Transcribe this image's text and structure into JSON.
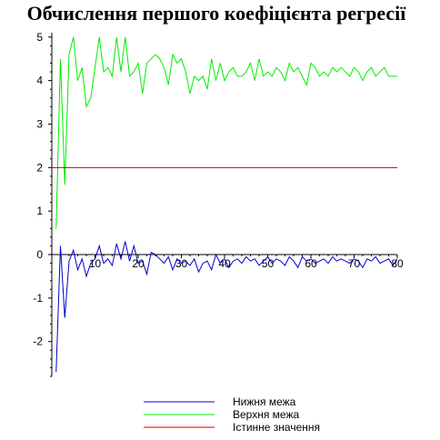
{
  "chart_data": {
    "type": "line",
    "title": "Обчислення першого коефіцієнта регресії",
    "xlabel": "",
    "ylabel": "",
    "xlim": [
      0,
      80
    ],
    "ylim": [
      -2.8,
      5.1
    ],
    "x_ticks": [
      0,
      10,
      20,
      30,
      40,
      50,
      60,
      70,
      80
    ],
    "y_ticks": [
      -2,
      -1,
      0,
      1,
      2,
      3,
      4,
      5
    ],
    "grid": false,
    "legend_position": "bottom-center",
    "series": [
      {
        "name": "Нижня межа",
        "color": "#0000cc",
        "x": [
          1,
          2,
          3,
          4,
          5,
          6,
          7,
          8,
          9,
          10,
          11,
          12,
          13,
          14,
          15,
          16,
          17,
          18,
          19,
          20,
          21,
          22,
          23,
          24,
          25,
          26,
          27,
          28,
          29,
          30,
          31,
          32,
          33,
          34,
          35,
          36,
          37,
          38,
          39,
          40,
          41,
          42,
          43,
          44,
          45,
          46,
          47,
          48,
          49,
          50,
          51,
          52,
          53,
          54,
          55,
          56,
          57,
          58,
          59,
          60,
          61,
          62,
          63,
          64,
          65,
          66,
          67,
          68,
          69,
          70,
          71,
          72,
          73,
          74,
          75,
          76,
          77,
          78,
          79,
          80
        ],
        "values": [
          -2.7,
          0.2,
          -1.45,
          -0.15,
          0.1,
          -0.35,
          -0.1,
          -0.5,
          -0.2,
          -0.1,
          0.2,
          -0.2,
          -0.1,
          -0.25,
          0.25,
          -0.1,
          0.3,
          -0.15,
          0.2,
          -0.2,
          -0.15,
          -0.45,
          0.05,
          0.0,
          -0.1,
          -0.2,
          -0.05,
          -0.35,
          -0.1,
          -0.2,
          -0.15,
          -0.25,
          -0.1,
          -0.4,
          -0.2,
          -0.15,
          -0.35,
          0.0,
          -0.2,
          -0.1,
          -0.3,
          -0.15,
          -0.1,
          -0.2,
          -0.05,
          -0.15,
          -0.1,
          -0.25,
          -0.15,
          -0.05,
          -0.2,
          -0.1,
          -0.15,
          -0.25,
          -0.05,
          -0.15,
          -0.3,
          -0.05,
          -0.15,
          -0.1,
          -0.2,
          -0.15,
          -0.1,
          -0.2,
          -0.05,
          -0.15,
          -0.1,
          -0.15,
          -0.2,
          -0.1,
          -0.15,
          -0.3,
          -0.1,
          -0.15,
          -0.05,
          -0.2,
          -0.15,
          -0.1,
          -0.25,
          -0.1
        ]
      },
      {
        "name": "Верхня межа",
        "color": "#00ee00",
        "x": [
          1,
          2,
          3,
          4,
          5,
          6,
          7,
          8,
          9,
          10,
          11,
          12,
          13,
          14,
          15,
          16,
          17,
          18,
          19,
          20,
          21,
          22,
          23,
          24,
          25,
          26,
          27,
          28,
          29,
          30,
          31,
          32,
          33,
          34,
          35,
          36,
          37,
          38,
          39,
          40,
          41,
          42,
          43,
          44,
          45,
          46,
          47,
          48,
          49,
          50,
          51,
          52,
          53,
          54,
          55,
          56,
          57,
          58,
          59,
          60,
          61,
          62,
          63,
          64,
          65,
          66,
          67,
          68,
          69,
          70,
          71,
          72,
          73,
          74,
          75,
          76,
          77,
          78,
          79,
          80
        ],
        "values": [
          0.6,
          4.5,
          1.6,
          4.6,
          5.0,
          4.0,
          4.3,
          3.4,
          3.6,
          4.3,
          5.0,
          4.2,
          4.3,
          4.1,
          5.0,
          4.2,
          5.0,
          4.1,
          4.2,
          4.4,
          3.7,
          4.4,
          4.5,
          4.6,
          4.5,
          4.3,
          3.9,
          4.6,
          4.4,
          4.5,
          4.2,
          3.7,
          4.1,
          4.0,
          4.1,
          3.8,
          4.5,
          4.0,
          4.4,
          4.0,
          4.2,
          4.3,
          4.1,
          4.1,
          4.2,
          4.4,
          4.0,
          4.5,
          4.1,
          4.2,
          4.1,
          4.3,
          4.2,
          4.0,
          4.4,
          4.2,
          4.3,
          4.1,
          3.9,
          4.4,
          4.3,
          4.1,
          4.2,
          4.1,
          4.3,
          4.2,
          4.3,
          4.2,
          4.1,
          4.3,
          4.2,
          4.0,
          4.2,
          4.3,
          4.1,
          4.2,
          4.3,
          4.1,
          4.1,
          4.1
        ]
      },
      {
        "name": "Істинне значення",
        "color": "#cc0000",
        "x": [
          0,
          80
        ],
        "values": [
          2,
          2
        ]
      }
    ]
  }
}
